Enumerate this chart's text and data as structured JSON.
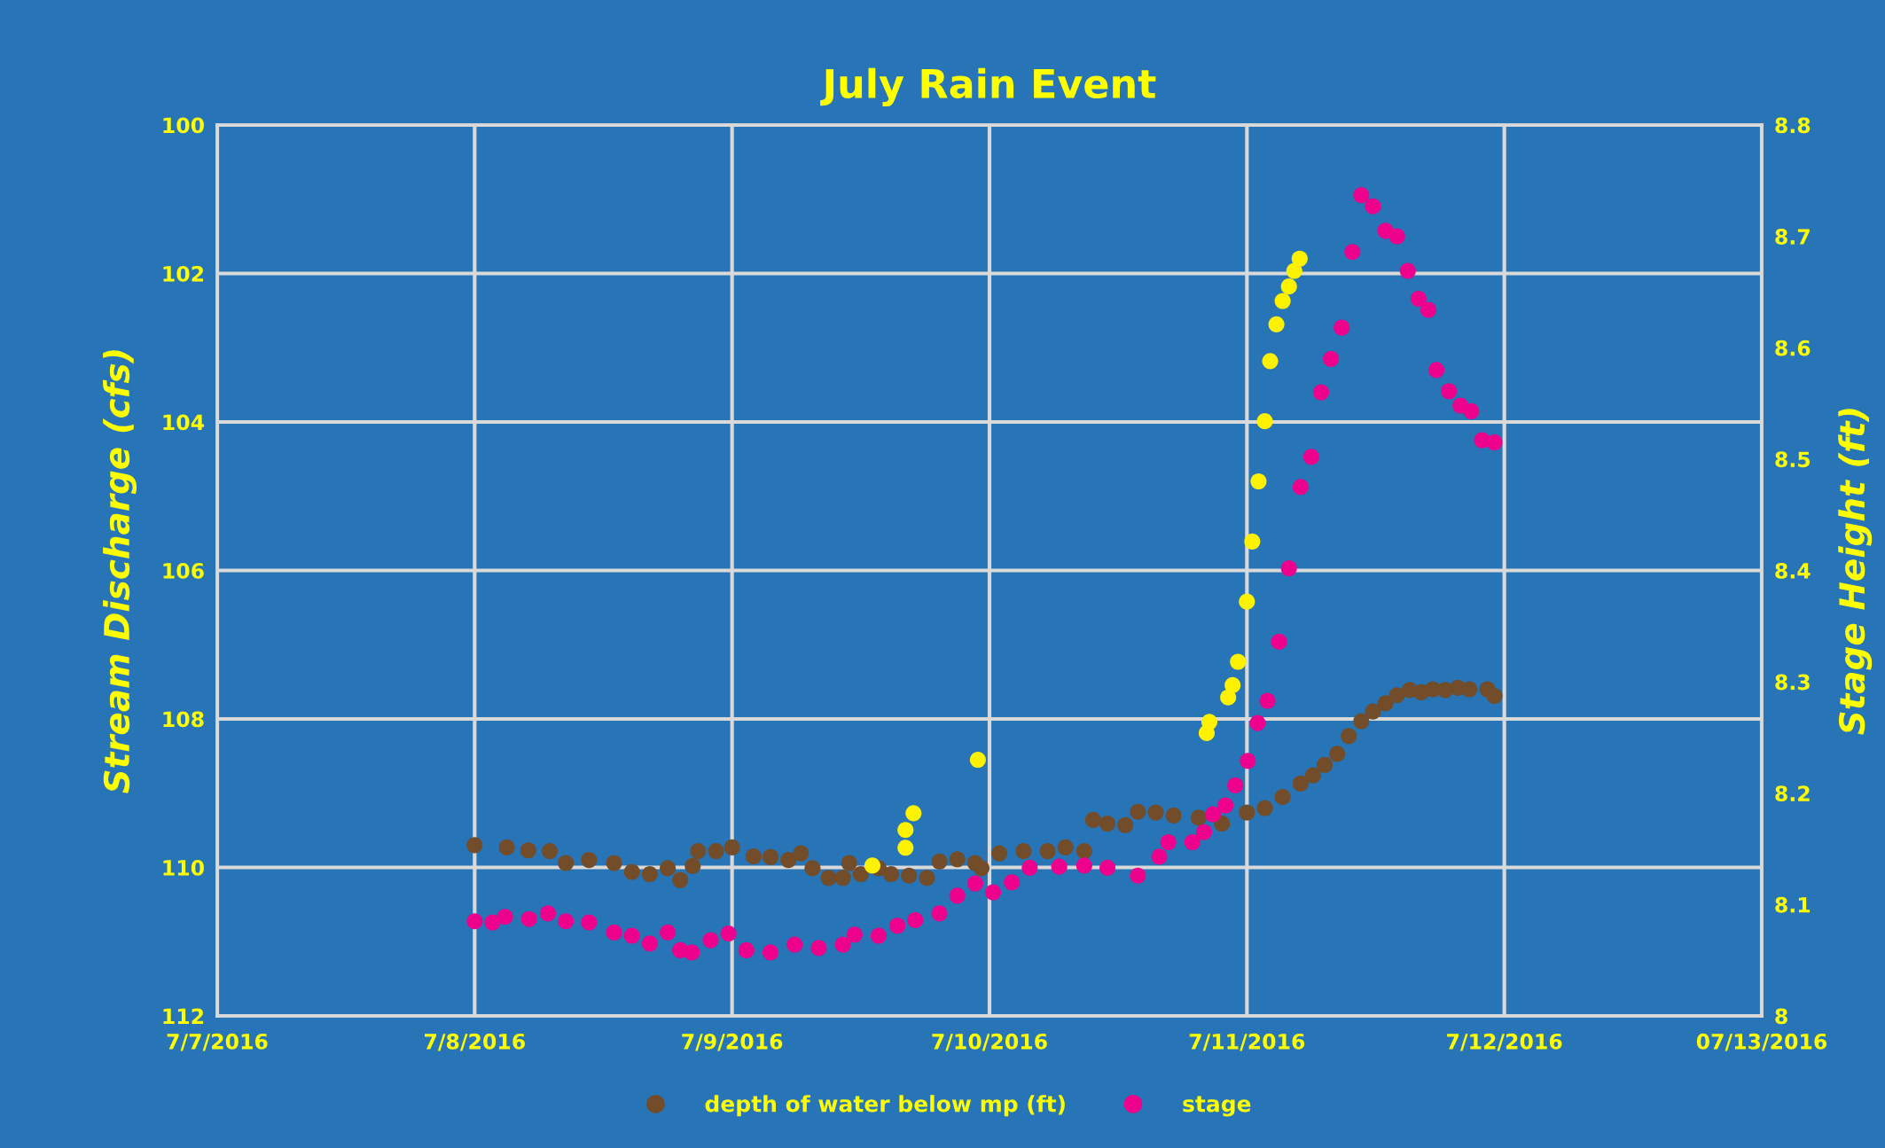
{
  "chart_data": {
    "type": "scatter",
    "title": "July Rain Event",
    "ylabel": "Stream Discharge (cfs)",
    "y2label": "Stage Height (ft)",
    "xlim": [
      "2016-07-07",
      "2016-07-13"
    ],
    "xticks": [
      {
        "value": "2016-07-07",
        "label": "7/7/2016"
      },
      {
        "value": "2016-07-08",
        "label": "7/8/2016"
      },
      {
        "value": "2016-07-09",
        "label": "7/9/2016"
      },
      {
        "value": "2016-07-10",
        "label": "7/10/2016"
      },
      {
        "value": "2016-07-11",
        "label": "7/11/2016"
      },
      {
        "value": "2016-07-12",
        "label": "7/12/2016"
      },
      {
        "value": "2016-07-13",
        "label": "07/13/2016"
      }
    ],
    "ylim": [
      112,
      100
    ],
    "yticks": [
      100,
      102,
      104,
      106,
      108,
      110,
      112
    ],
    "y2lim": [
      8,
      8.8
    ],
    "y2ticks": [
      8,
      8.1,
      8.2,
      8.3,
      8.4,
      8.5,
      8.6,
      8.7,
      8.8
    ],
    "grid": true,
    "legend": "bottom",
    "marker": "circle",
    "series": [
      {
        "name": "depth of water below mp (ft)",
        "color": "#734c29",
        "axis": "y",
        "x": [
          "2016-07-08T00:00",
          "2016-07-08T03:00",
          "2016-07-08T05:00",
          "2016-07-08T07:00",
          "2016-07-08T08:30",
          "2016-07-08T10:40",
          "2016-07-08T13:00",
          "2016-07-08T14:40",
          "2016-07-08T16:20",
          "2016-07-08T18:00",
          "2016-07-08T19:10",
          "2016-07-08T20:20",
          "2016-07-08T20:50",
          "2016-07-08T22:30",
          "2016-07-09T00:00",
          "2016-07-09T02:00",
          "2016-07-09T03:35",
          "2016-07-09T05:15",
          "2016-07-09T06:25",
          "2016-07-09T07:30",
          "2016-07-09T09:00",
          "2016-07-09T10:20",
          "2016-07-09T10:55",
          "2016-07-09T12:00",
          "2016-07-09T13:40",
          "2016-07-09T14:50",
          "2016-07-09T16:30",
          "2016-07-09T18:10",
          "2016-07-09T19:20",
          "2016-07-09T21:00",
          "2016-07-09T22:40",
          "2016-07-09T23:15",
          "2016-07-10T00:55",
          "2016-07-10T03:10",
          "2016-07-10T05:25",
          "2016-07-10T07:05",
          "2016-07-10T08:50",
          "2016-07-10T09:40",
          "2016-07-10T11:00",
          "2016-07-10T12:40",
          "2016-07-10T13:50",
          "2016-07-10T15:30",
          "2016-07-10T17:10",
          "2016-07-10T19:30",
          "2016-07-10T21:40",
          "2016-07-11T00:00",
          "2016-07-11T01:40",
          "2016-07-11T03:20",
          "2016-07-11T05:00",
          "2016-07-11T06:10",
          "2016-07-11T07:15",
          "2016-07-11T08:25",
          "2016-07-11T09:30",
          "2016-07-11T10:40",
          "2016-07-11T11:45",
          "2016-07-11T12:55",
          "2016-07-11T14:00",
          "2016-07-11T15:10",
          "2016-07-11T16:15",
          "2016-07-11T17:20",
          "2016-07-11T18:30",
          "2016-07-11T19:40",
          "2016-07-11T20:45",
          "2016-07-11T22:25",
          "2016-07-11T23:05"
        ],
        "values": [
          109.7,
          109.73,
          109.77,
          109.78,
          109.94,
          109.9,
          109.94,
          110.06,
          110.09,
          110.01,
          110.17,
          109.98,
          109.78,
          109.78,
          109.73,
          109.85,
          109.86,
          109.9,
          109.81,
          110.01,
          110.14,
          110.14,
          109.94,
          110.09,
          110.01,
          110.09,
          110.11,
          110.14,
          109.92,
          109.89,
          109.94,
          110.01,
          109.81,
          109.78,
          109.78,
          109.73,
          109.78,
          109.36,
          109.41,
          109.43,
          109.25,
          109.26,
          109.3,
          109.33,
          109.41,
          109.26,
          109.2,
          109.05,
          108.87,
          108.76,
          108.62,
          108.47,
          108.23,
          108.03,
          107.9,
          107.79,
          107.68,
          107.61,
          107.64,
          107.6,
          107.61,
          107.58,
          107.6,
          107.6,
          107.69
        ]
      },
      {
        "name": "stage",
        "color": "#ec008c",
        "axis": "y2",
        "x": [
          "2016-07-08T00:00",
          "2016-07-08T01:40",
          "2016-07-08T02:50",
          "2016-07-08T05:05",
          "2016-07-08T06:50",
          "2016-07-08T08:30",
          "2016-07-08T10:40",
          "2016-07-08T13:00",
          "2016-07-08T14:40",
          "2016-07-08T16:20",
          "2016-07-08T18:00",
          "2016-07-08T19:10",
          "2016-07-08T20:15",
          "2016-07-08T22:00",
          "2016-07-08T23:40",
          "2016-07-09T01:20",
          "2016-07-09T03:35",
          "2016-07-09T05:50",
          "2016-07-09T08:05",
          "2016-07-09T10:20",
          "2016-07-09T11:25",
          "2016-07-09T13:40",
          "2016-07-09T15:25",
          "2016-07-09T17:05",
          "2016-07-09T19:20",
          "2016-07-09T21:00",
          "2016-07-09T22:40",
          "2016-07-10T00:20",
          "2016-07-10T02:05",
          "2016-07-10T03:45",
          "2016-07-10T06:30",
          "2016-07-10T08:50",
          "2016-07-10T11:00",
          "2016-07-10T13:50",
          "2016-07-10T15:50",
          "2016-07-10T16:40",
          "2016-07-10T18:55",
          "2016-07-10T20:00",
          "2016-07-10T20:50",
          "2016-07-10T22:00",
          "2016-07-10T22:55",
          "2016-07-11T00:05",
          "2016-07-11T01:00",
          "2016-07-11T01:55",
          "2016-07-11T03:00",
          "2016-07-11T03:55",
          "2016-07-11T05:00",
          "2016-07-11T06:00",
          "2016-07-11T06:55",
          "2016-07-11T07:50",
          "2016-07-11T08:50",
          "2016-07-11T09:50",
          "2016-07-11T10:40",
          "2016-07-11T11:45",
          "2016-07-11T12:55",
          "2016-07-11T14:00",
          "2016-07-11T15:00",
          "2016-07-11T16:00",
          "2016-07-11T16:55",
          "2016-07-11T17:40",
          "2016-07-11T18:50",
          "2016-07-11T19:55",
          "2016-07-11T20:55",
          "2016-07-11T21:55",
          "2016-07-11T23:05"
        ],
        "values": [
          8.085,
          8.084,
          8.089,
          8.087,
          8.092,
          8.085,
          8.084,
          8.075,
          8.072,
          8.065,
          8.075,
          8.059,
          8.057,
          8.068,
          8.074,
          8.059,
          8.057,
          8.064,
          8.061,
          8.064,
          8.073,
          8.072,
          8.081,
          8.086,
          8.092,
          8.108,
          8.119,
          8.111,
          8.12,
          8.133,
          8.134,
          8.135,
          8.133,
          8.126,
          8.143,
          8.156,
          8.156,
          8.165,
          8.181,
          8.189,
          8.207,
          8.229,
          8.263,
          8.283,
          8.336,
          8.402,
          8.475,
          8.502,
          8.56,
          8.59,
          8.618,
          8.686,
          8.737,
          8.727,
          8.705,
          8.7,
          8.669,
          8.644,
          8.634,
          8.58,
          8.561,
          8.548,
          8.543,
          8.517,
          8.515
        ]
      },
      {
        "color": "#fff200",
        "axis": "y2",
        "x": [
          "2016-07-09T13:05",
          "2016-07-09T16:10",
          "2016-07-09T16:10",
          "2016-07-09T16:55",
          "2016-07-09T22:55",
          "2016-07-10T20:15",
          "2016-07-10T20:30",
          "2016-07-10T22:15",
          "2016-07-10T22:40",
          "2016-07-10T23:10",
          "2016-07-11T00:00",
          "2016-07-11T00:30",
          "2016-07-11T01:05",
          "2016-07-11T01:40",
          "2016-07-11T02:10",
          "2016-07-11T02:45",
          "2016-07-11T03:20",
          "2016-07-11T03:55",
          "2016-07-11T04:25",
          "2016-07-11T04:55"
        ],
        "values": [
          8.135,
          8.151,
          8.167,
          8.182,
          8.23,
          8.254,
          8.264,
          8.286,
          8.297,
          8.318,
          8.372,
          8.426,
          8.48,
          8.534,
          8.588,
          8.621,
          8.642,
          8.655,
          8.669,
          8.68
        ]
      }
    ]
  }
}
